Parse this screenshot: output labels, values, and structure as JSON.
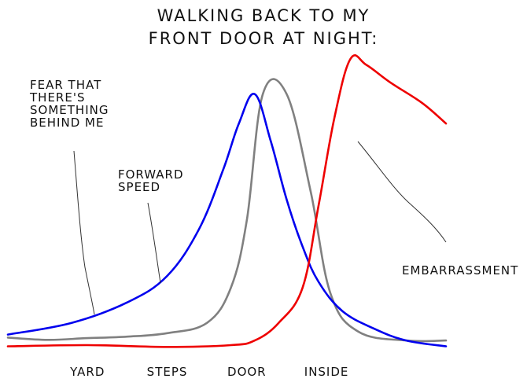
{
  "chart_data": {
    "type": "line",
    "title": [
      "WALKING BACK TO MY",
      "FRONT DOOR AT NIGHT:"
    ],
    "categories": [
      "YARD",
      "STEPS",
      "DOOR",
      "INSIDE"
    ],
    "grid": false,
    "series": [
      {
        "name": "FEAR THAT THERE'S SOMETHING BEHIND ME",
        "color": "#808080",
        "x": [
          0,
          0.5,
          1,
          1.5,
          2,
          2.5,
          2.8,
          3,
          3.2,
          3.5,
          3.8,
          4.05,
          4.4,
          5.0,
          5.5
        ],
        "y": [
          5,
          4.2,
          4.8,
          5.3,
          6.5,
          10,
          22,
          45,
          88,
          88,
          55,
          20,
          7,
          4,
          4
        ]
      },
      {
        "name": "FORWARD SPEED",
        "color": "#0000ee",
        "x": [
          0,
          0.8,
          1.5,
          2,
          2.4,
          2.7,
          2.9,
          3.1,
          3.3,
          3.5,
          3.7,
          3.9,
          4.2,
          4.6,
          5.0,
          5.5
        ],
        "y": [
          6,
          10,
          17,
          26,
          42,
          62,
          78,
          88,
          72,
          52,
          36,
          24,
          14,
          8,
          4,
          2
        ]
      },
      {
        "name": "EMBARRASSMENT",
        "color": "#ee0000",
        "x": [
          0,
          1,
          2,
          2.8,
          3.1,
          3.4,
          3.7,
          3.9,
          4.1,
          4.3,
          4.5,
          4.8,
          5.2,
          5.5
        ],
        "y": [
          2,
          2.4,
          1.8,
          2.4,
          4,
          10,
          22,
          50,
          80,
          100,
          98,
          92,
          85,
          78
        ]
      }
    ],
    "annotations": [
      {
        "text": [
          "FEAR THAT",
          "THERE'S",
          "SOMETHING",
          "BEHIND ME"
        ],
        "series": "FEAR THAT THERE'S SOMETHING BEHIND ME"
      },
      {
        "text": [
          "FORWARD",
          "SPEED"
        ],
        "series": "FORWARD SPEED"
      },
      {
        "text": [
          "EMBARRASSMENT"
        ],
        "series": "EMBARRASSMENT"
      }
    ],
    "xlim": [
      0,
      5.5
    ],
    "ylim": [
      0,
      100
    ]
  }
}
